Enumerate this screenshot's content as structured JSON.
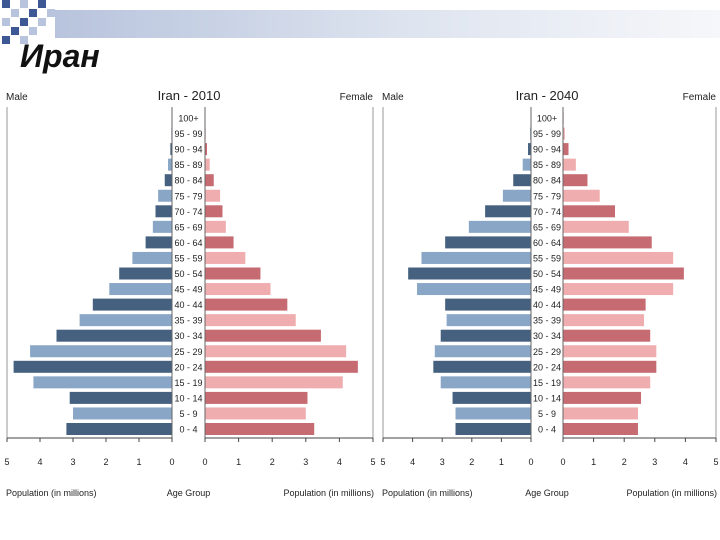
{
  "slide": {
    "title": "Иран"
  },
  "colors": {
    "male_dark": "#46617f",
    "male_light": "#89a6c6",
    "female_dark": "#c56b71",
    "female_light": "#efadaf",
    "accent_blue": "#3d5894",
    "accent_light": "#b8c4dd"
  },
  "chart_data": [
    {
      "type": "bar",
      "title": "Iran - 2010",
      "left_label": "Male",
      "right_label": "Female",
      "xlabel_left": "Population (in millions)",
      "xlabel_center": "Age Group",
      "xlabel_right": "Population (in millions)",
      "xlim": [
        0,
        5
      ],
      "ticks_left": [
        "5",
        "4",
        "3",
        "2",
        "1",
        "0"
      ],
      "ticks_right": [
        "0",
        "1",
        "2",
        "3",
        "4",
        "5"
      ],
      "age_groups": [
        "100+",
        "95 - 99",
        "90 - 94",
        "85 - 89",
        "80 - 84",
        "75 - 79",
        "70 - 74",
        "65 - 69",
        "60 - 64",
        "55 - 59",
        "50 - 54",
        "45 - 49",
        "40 - 44",
        "35 - 39",
        "30 - 34",
        "25 - 29",
        "20 - 24",
        "15 - 19",
        "10 - 14",
        "5 - 9",
        "0 - 4"
      ],
      "series": [
        {
          "name": "Male",
          "values": [
            0.01,
            0.02,
            0.05,
            0.12,
            0.22,
            0.42,
            0.5,
            0.58,
            0.8,
            1.2,
            1.6,
            1.9,
            2.4,
            2.8,
            3.5,
            4.3,
            4.8,
            4.2,
            3.1,
            3.0,
            3.2
          ]
        },
        {
          "name": "Female",
          "values": [
            0.01,
            0.02,
            0.06,
            0.14,
            0.26,
            0.45,
            0.52,
            0.62,
            0.85,
            1.2,
            1.65,
            1.95,
            2.45,
            2.7,
            3.45,
            4.2,
            4.55,
            4.1,
            3.05,
            3.0,
            3.25
          ]
        }
      ]
    },
    {
      "type": "bar",
      "title": "Iran - 2040",
      "left_label": "Male",
      "right_label": "Female",
      "xlabel_left": "Population (in millions)",
      "xlabel_center": "Age Group",
      "xlabel_right": "Population (in millions)",
      "xlim": [
        0,
        5
      ],
      "ticks_left": [
        "5",
        "4",
        "3",
        "2",
        "1",
        "0"
      ],
      "ticks_right": [
        "0",
        "1",
        "2",
        "3",
        "4",
        "5"
      ],
      "age_groups": [
        "100+",
        "95 - 99",
        "90 - 94",
        "85 - 89",
        "80 - 84",
        "75 - 79",
        "70 - 74",
        "65 - 69",
        "60 - 64",
        "55 - 59",
        "50 - 54",
        "45 - 49",
        "40 - 44",
        "35 - 39",
        "30 - 34",
        "25 - 29",
        "20 - 24",
        "15 - 19",
        "10 - 14",
        "5 - 9",
        "0 - 4"
      ],
      "series": [
        {
          "name": "Male",
          "values": [
            0.01,
            0.03,
            0.1,
            0.28,
            0.6,
            0.95,
            1.55,
            2.1,
            2.9,
            3.7,
            4.15,
            3.85,
            2.9,
            2.85,
            3.05,
            3.25,
            3.3,
            3.05,
            2.65,
            2.55,
            2.55
          ]
        },
        {
          "name": "Female",
          "values": [
            0.02,
            0.06,
            0.18,
            0.42,
            0.8,
            1.2,
            1.7,
            2.15,
            2.9,
            3.6,
            3.95,
            3.6,
            2.7,
            2.65,
            2.85,
            3.05,
            3.05,
            2.85,
            2.55,
            2.45,
            2.45
          ]
        }
      ]
    }
  ]
}
